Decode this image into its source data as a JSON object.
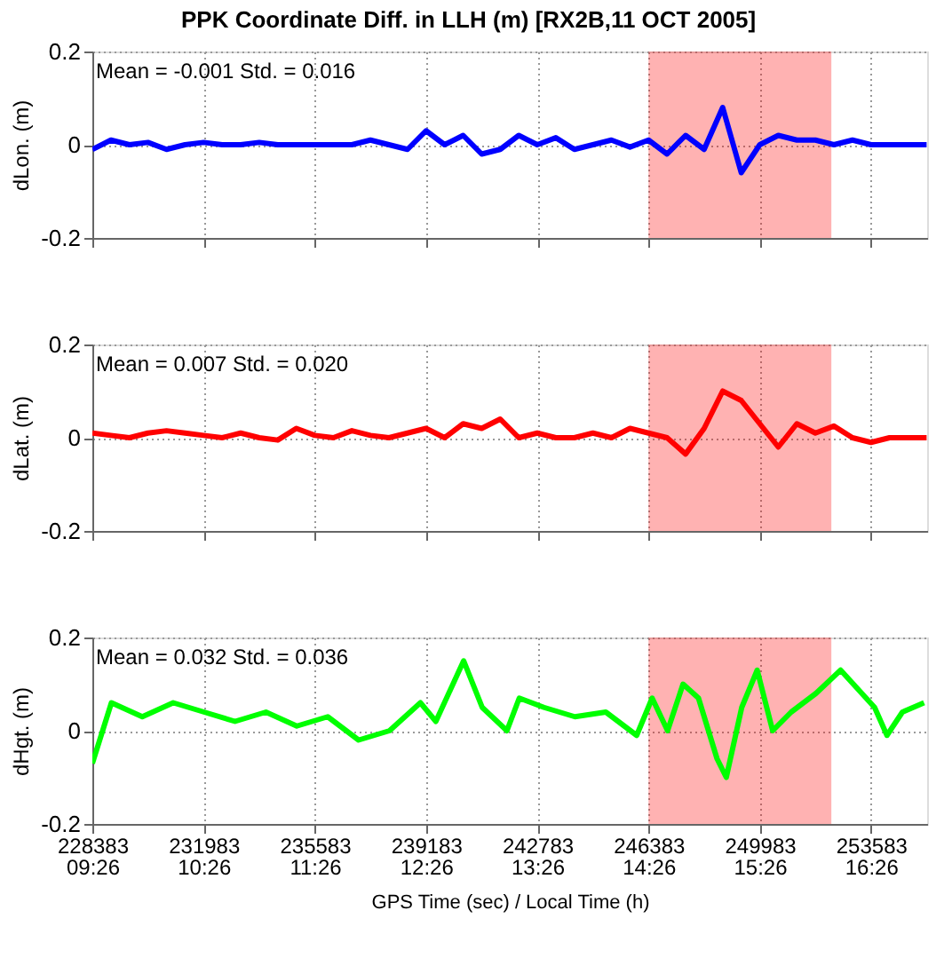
{
  "chart_data": [
    {
      "type": "line",
      "title": "PPK Coordinate Diff. in LLH (m) [RX2B,11 OCT 2005]",
      "ylabel": "dLon. (m)",
      "annotations": [
        "Mean = -0.001   Std. = 0.016"
      ],
      "x": [
        228383,
        228983,
        229583,
        230183,
        230783,
        231383,
        231983,
        232583,
        233183,
        233783,
        234383,
        234983,
        235583,
        236183,
        236783,
        237383,
        237983,
        238583,
        239183,
        239783,
        240383,
        240983,
        241583,
        242183,
        242783,
        243383,
        243983,
        244583,
        245183,
        245783,
        246383,
        246983,
        247583,
        248183,
        248783,
        249383,
        249983,
        250583,
        251183,
        251783,
        252383,
        252983,
        253583,
        254183,
        254783,
        255383
      ],
      "series": [
        {
          "color": "#0000ff",
          "values": [
            -0.01,
            0.01,
            0.0,
            0.005,
            -0.01,
            0.0,
            0.005,
            0.0,
            0.0,
            0.005,
            0.0,
            0.0,
            0.0,
            0.0,
            0.0,
            0.01,
            0.0,
            -0.01,
            0.03,
            0.0,
            0.02,
            -0.02,
            -0.01,
            0.02,
            0.0,
            0.015,
            -0.01,
            0.0,
            0.01,
            -0.005,
            0.01,
            -0.02,
            0.02,
            -0.01,
            0.08,
            -0.06,
            0.0,
            0.02,
            0.01,
            0.01,
            0.0,
            0.01,
            0.0,
            0.0,
            0.0,
            0.0
          ]
        }
      ],
      "xlim": [
        228383,
        255400
      ],
      "ylim": [
        -0.2,
        0.2
      ],
      "yticks": [
        -0.2,
        0,
        0.2
      ],
      "xticks": [
        228383,
        231983,
        235583,
        239183,
        242783,
        246383,
        249983,
        253583
      ],
      "tick_labels": "y",
      "grid": true,
      "bands": [
        {
          "axis": "x",
          "from": 246383,
          "to": 252300,
          "color": "#ff0000"
        }
      ]
    },
    {
      "type": "line",
      "ylabel": "dLat. (m)",
      "annotations": [
        "Mean = 0.007   Std. = 0.020"
      ],
      "x": [
        228383,
        228983,
        229583,
        230183,
        230783,
        231383,
        231983,
        232583,
        233183,
        233783,
        234383,
        234983,
        235583,
        236183,
        236783,
        237383,
        237983,
        238583,
        239183,
        239783,
        240383,
        240983,
        241583,
        242183,
        242783,
        243383,
        243983,
        244583,
        245183,
        245783,
        246383,
        246983,
        247583,
        248183,
        248783,
        249383,
        249983,
        250583,
        251183,
        251783,
        252383,
        252983,
        253583,
        254183,
        254783,
        255383
      ],
      "series": [
        {
          "color": "#ff0000",
          "values": [
            0.01,
            0.005,
            0.0,
            0.01,
            0.015,
            0.01,
            0.005,
            0.0,
            0.01,
            0.0,
            -0.005,
            0.02,
            0.005,
            0.0,
            0.015,
            0.005,
            0.0,
            0.01,
            0.02,
            0.0,
            0.03,
            0.02,
            0.04,
            0.0,
            0.01,
            0.0,
            0.0,
            0.01,
            0.0,
            0.02,
            0.01,
            0.0,
            -0.035,
            0.02,
            0.1,
            0.08,
            0.03,
            -0.02,
            0.03,
            0.01,
            0.025,
            0.0,
            -0.01,
            0.0,
            0.0,
            0.0
          ]
        }
      ],
      "xlim": [
        228383,
        255400
      ],
      "ylim": [
        -0.2,
        0.2
      ],
      "yticks": [
        -0.2,
        0,
        0.2
      ],
      "xticks": [
        228383,
        231983,
        235583,
        239183,
        242783,
        246383,
        249983,
        253583
      ],
      "tick_labels": "y",
      "grid": true,
      "bands": [
        {
          "axis": "x",
          "from": 246383,
          "to": 252300,
          "color": "#ff0000"
        }
      ]
    },
    {
      "type": "line",
      "ylabel": "dHgt. (m)",
      "xlabel": "GPS Time (sec) / Local Time (h)",
      "annotations": [
        "Mean = 0.032   Std. = 0.036"
      ],
      "x": [
        228383,
        229000,
        230000,
        231000,
        232000,
        233000,
        234000,
        235000,
        236000,
        237000,
        238000,
        239000,
        239500,
        240400,
        241000,
        241800,
        242200,
        243000,
        244000,
        245000,
        246000,
        246500,
        247000,
        247500,
        248000,
        248600,
        248900,
        249400,
        249900,
        250400,
        251000,
        251800,
        252600,
        253700,
        254100,
        254600,
        255300
      ],
      "series": [
        {
          "color": "#00ff00",
          "values": [
            -0.07,
            0.06,
            0.03,
            0.06,
            0.04,
            0.02,
            0.04,
            0.01,
            0.03,
            -0.02,
            0.0,
            0.06,
            0.02,
            0.15,
            0.05,
            0.0,
            0.07,
            0.05,
            0.03,
            0.04,
            -0.01,
            0.07,
            0.0,
            0.1,
            0.07,
            -0.06,
            -0.1,
            0.05,
            0.13,
            0.0,
            0.04,
            0.08,
            0.13,
            0.05,
            -0.01,
            0.04,
            0.06
          ]
        }
      ],
      "xlim": [
        228383,
        255400
      ],
      "ylim": [
        -0.2,
        0.2
      ],
      "yticks": [
        -0.2,
        0,
        0.2
      ],
      "xticks": [
        228383,
        231983,
        235583,
        239183,
        242783,
        246383,
        249983,
        253583
      ],
      "x2lim": [
        9.43333,
        16.93806
      ],
      "x2ticks": [
        {
          "value": 9.43333,
          "label": "09:26"
        },
        {
          "value": 10.43333,
          "label": "10:26"
        },
        {
          "value": 11.43333,
          "label": "11:26"
        },
        {
          "value": 12.43333,
          "label": "12:26"
        },
        {
          "value": 13.43333,
          "label": "13:26"
        },
        {
          "value": 14.43333,
          "label": "14:26"
        },
        {
          "value": 15.43333,
          "label": "15:26"
        },
        {
          "value": 16.43333,
          "label": "16:26"
        }
      ],
      "grid": true,
      "bands": [
        {
          "axis": "x",
          "from": 246383,
          "to": 252300,
          "color": "#ff0000"
        }
      ]
    }
  ]
}
